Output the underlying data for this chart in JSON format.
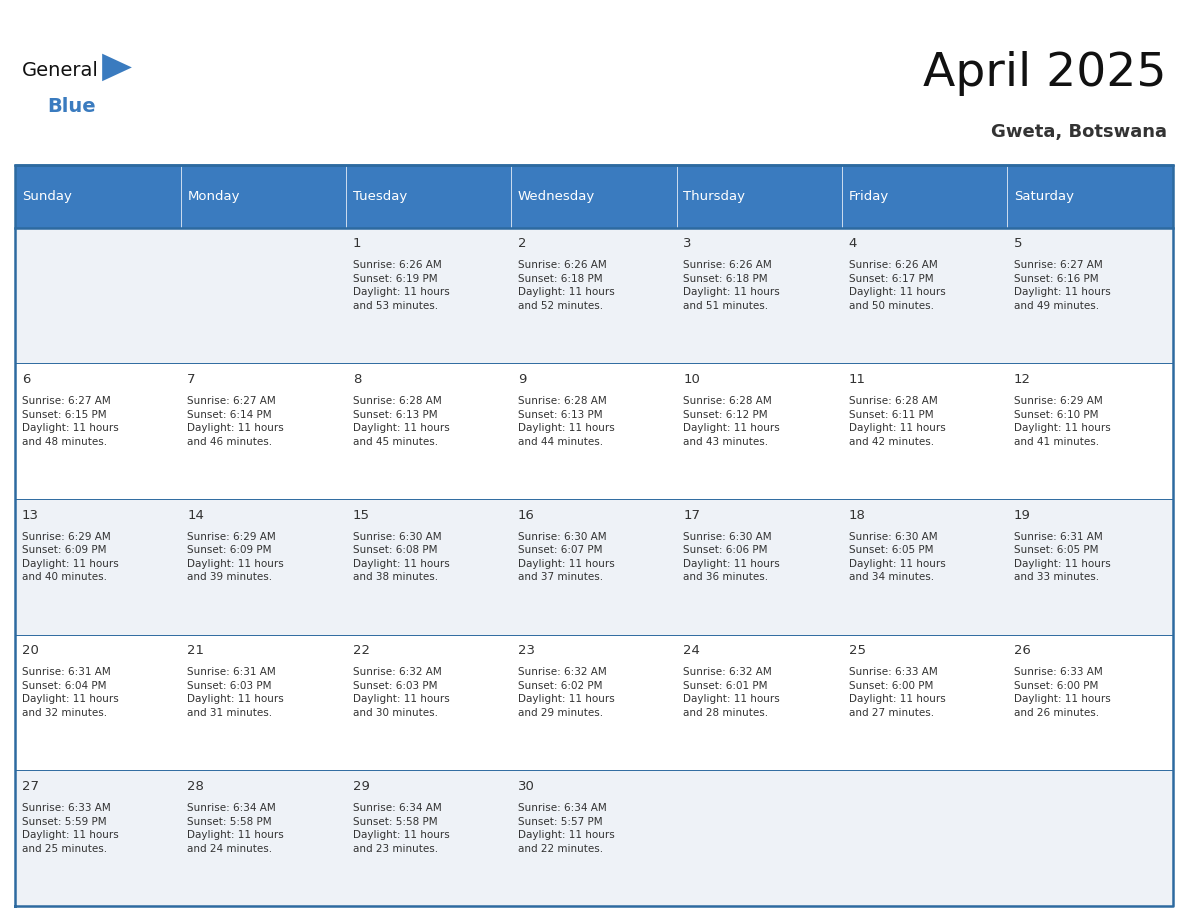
{
  "title": "April 2025",
  "subtitle": "Gweta, Botswana",
  "header_bg": "#3a7bbf",
  "header_text_color": "#ffffff",
  "cell_bg_light": "#eef2f7",
  "cell_bg_white": "#ffffff",
  "day_headers": [
    "Sunday",
    "Monday",
    "Tuesday",
    "Wednesday",
    "Thursday",
    "Friday",
    "Saturday"
  ],
  "grid_color": "#2d6aa0",
  "text_color": "#333333",
  "days": [
    {
      "day": 1,
      "col": 2,
      "row": 0,
      "sunrise": "6:26 AM",
      "sunset": "6:19 PM",
      "daylight": "11 hours and 53 minutes."
    },
    {
      "day": 2,
      "col": 3,
      "row": 0,
      "sunrise": "6:26 AM",
      "sunset": "6:18 PM",
      "daylight": "11 hours and 52 minutes."
    },
    {
      "day": 3,
      "col": 4,
      "row": 0,
      "sunrise": "6:26 AM",
      "sunset": "6:18 PM",
      "daylight": "11 hours and 51 minutes."
    },
    {
      "day": 4,
      "col": 5,
      "row": 0,
      "sunrise": "6:26 AM",
      "sunset": "6:17 PM",
      "daylight": "11 hours and 50 minutes."
    },
    {
      "day": 5,
      "col": 6,
      "row": 0,
      "sunrise": "6:27 AM",
      "sunset": "6:16 PM",
      "daylight": "11 hours and 49 minutes."
    },
    {
      "day": 6,
      "col": 0,
      "row": 1,
      "sunrise": "6:27 AM",
      "sunset": "6:15 PM",
      "daylight": "11 hours and 48 minutes."
    },
    {
      "day": 7,
      "col": 1,
      "row": 1,
      "sunrise": "6:27 AM",
      "sunset": "6:14 PM",
      "daylight": "11 hours and 46 minutes."
    },
    {
      "day": 8,
      "col": 2,
      "row": 1,
      "sunrise": "6:28 AM",
      "sunset": "6:13 PM",
      "daylight": "11 hours and 45 minutes."
    },
    {
      "day": 9,
      "col": 3,
      "row": 1,
      "sunrise": "6:28 AM",
      "sunset": "6:13 PM",
      "daylight": "11 hours and 44 minutes."
    },
    {
      "day": 10,
      "col": 4,
      "row": 1,
      "sunrise": "6:28 AM",
      "sunset": "6:12 PM",
      "daylight": "11 hours and 43 minutes."
    },
    {
      "day": 11,
      "col": 5,
      "row": 1,
      "sunrise": "6:28 AM",
      "sunset": "6:11 PM",
      "daylight": "11 hours and 42 minutes."
    },
    {
      "day": 12,
      "col": 6,
      "row": 1,
      "sunrise": "6:29 AM",
      "sunset": "6:10 PM",
      "daylight": "11 hours and 41 minutes."
    },
    {
      "day": 13,
      "col": 0,
      "row": 2,
      "sunrise": "6:29 AM",
      "sunset": "6:09 PM",
      "daylight": "11 hours and 40 minutes."
    },
    {
      "day": 14,
      "col": 1,
      "row": 2,
      "sunrise": "6:29 AM",
      "sunset": "6:09 PM",
      "daylight": "11 hours and 39 minutes."
    },
    {
      "day": 15,
      "col": 2,
      "row": 2,
      "sunrise": "6:30 AM",
      "sunset": "6:08 PM",
      "daylight": "11 hours and 38 minutes."
    },
    {
      "day": 16,
      "col": 3,
      "row": 2,
      "sunrise": "6:30 AM",
      "sunset": "6:07 PM",
      "daylight": "11 hours and 37 minutes."
    },
    {
      "day": 17,
      "col": 4,
      "row": 2,
      "sunrise": "6:30 AM",
      "sunset": "6:06 PM",
      "daylight": "11 hours and 36 minutes."
    },
    {
      "day": 18,
      "col": 5,
      "row": 2,
      "sunrise": "6:30 AM",
      "sunset": "6:05 PM",
      "daylight": "11 hours and 34 minutes."
    },
    {
      "day": 19,
      "col": 6,
      "row": 2,
      "sunrise": "6:31 AM",
      "sunset": "6:05 PM",
      "daylight": "11 hours and 33 minutes."
    },
    {
      "day": 20,
      "col": 0,
      "row": 3,
      "sunrise": "6:31 AM",
      "sunset": "6:04 PM",
      "daylight": "11 hours and 32 minutes."
    },
    {
      "day": 21,
      "col": 1,
      "row": 3,
      "sunrise": "6:31 AM",
      "sunset": "6:03 PM",
      "daylight": "11 hours and 31 minutes."
    },
    {
      "day": 22,
      "col": 2,
      "row": 3,
      "sunrise": "6:32 AM",
      "sunset": "6:03 PM",
      "daylight": "11 hours and 30 minutes."
    },
    {
      "day": 23,
      "col": 3,
      "row": 3,
      "sunrise": "6:32 AM",
      "sunset": "6:02 PM",
      "daylight": "11 hours and 29 minutes."
    },
    {
      "day": 24,
      "col": 4,
      "row": 3,
      "sunrise": "6:32 AM",
      "sunset": "6:01 PM",
      "daylight": "11 hours and 28 minutes."
    },
    {
      "day": 25,
      "col": 5,
      "row": 3,
      "sunrise": "6:33 AM",
      "sunset": "6:00 PM",
      "daylight": "11 hours and 27 minutes."
    },
    {
      "day": 26,
      "col": 6,
      "row": 3,
      "sunrise": "6:33 AM",
      "sunset": "6:00 PM",
      "daylight": "11 hours and 26 minutes."
    },
    {
      "day": 27,
      "col": 0,
      "row": 4,
      "sunrise": "6:33 AM",
      "sunset": "5:59 PM",
      "daylight": "11 hours and 25 minutes."
    },
    {
      "day": 28,
      "col": 1,
      "row": 4,
      "sunrise": "6:34 AM",
      "sunset": "5:58 PM",
      "daylight": "11 hours and 24 minutes."
    },
    {
      "day": 29,
      "col": 2,
      "row": 4,
      "sunrise": "6:34 AM",
      "sunset": "5:58 PM",
      "daylight": "11 hours and 23 minutes."
    },
    {
      "day": 30,
      "col": 3,
      "row": 4,
      "sunrise": "6:34 AM",
      "sunset": "5:57 PM",
      "daylight": "11 hours and 22 minutes."
    }
  ]
}
